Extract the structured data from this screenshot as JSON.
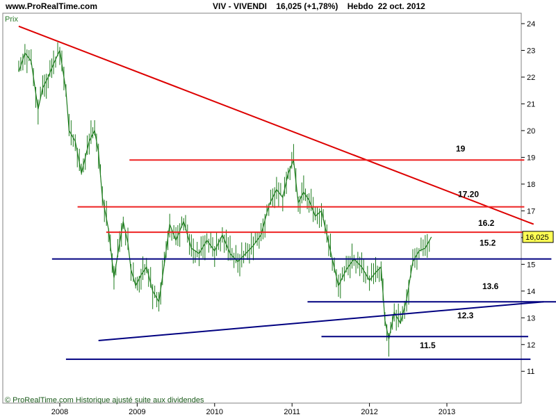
{
  "header": {
    "site": "www.ProRealTime.com",
    "quote": "VIV - VIVENDI    16,025 (+1,78%)    Hebdo  22 oct. 2012"
  },
  "chart_data": {
    "type": "line",
    "title": "VIV - VIVENDI",
    "subtitle": "16,025 (+1,78%)    Hebdo  22 oct. 2012",
    "ylabel": "Prix",
    "ylim": [
      10.6,
      24.4
    ],
    "xlim": [
      2007.45,
      2013.9
    ],
    "y_ticks": [
      11,
      12,
      13,
      14,
      15,
      16,
      17,
      18,
      19,
      20,
      21,
      22,
      23,
      24
    ],
    "x_ticks": [
      {
        "label": "2008",
        "x": 2008.0
      },
      {
        "label": "2009",
        "x": 2009.0
      },
      {
        "label": "2010",
        "x": 2010.0
      },
      {
        "label": "2011",
        "x": 2011.0
      },
      {
        "label": "2012",
        "x": 2012.0
      },
      {
        "label": "2013",
        "x": 2013.0
      }
    ],
    "last_price": "16,025",
    "footer": "© ProRealTime.com Historique ajusté suite aux dividendes",
    "grid": false,
    "price_series": {
      "name": "",
      "color": "#1a7a1a",
      "x": [
        2007.47,
        2007.55,
        2007.63,
        2007.72,
        2007.78,
        2007.85,
        2007.92,
        2008.0,
        2008.08,
        2008.12,
        2008.2,
        2008.28,
        2008.38,
        2008.45,
        2008.5,
        2008.55,
        2008.63,
        2008.7,
        2008.75,
        2008.82,
        2008.88,
        2008.92,
        2008.98,
        2009.05,
        2009.12,
        2009.2,
        2009.28,
        2009.35,
        2009.42,
        2009.5,
        2009.6,
        2009.7,
        2009.8,
        2009.9,
        2010.0,
        2010.1,
        2010.2,
        2010.3,
        2010.4,
        2010.5,
        2010.6,
        2010.7,
        2010.8,
        2010.88,
        2010.95,
        2011.02,
        2011.08,
        2011.15,
        2011.22,
        2011.3,
        2011.38,
        2011.45,
        2011.52,
        2011.6,
        2011.7,
        2011.8,
        2011.9,
        2012.0,
        2012.08,
        2012.15,
        2012.2,
        2012.25,
        2012.32,
        2012.4,
        2012.48,
        2012.56,
        2012.64,
        2012.72,
        2012.8
      ],
      "values": [
        22.2,
        22.9,
        22.6,
        20.8,
        21.6,
        22.0,
        22.5,
        23.0,
        21.5,
        20.0,
        19.6,
        18.4,
        19.6,
        20.0,
        19.2,
        17.5,
        16.3,
        14.5,
        15.4,
        16.6,
        15.8,
        14.8,
        14.2,
        14.6,
        14.9,
        14.0,
        13.6,
        15.0,
        16.5,
        15.9,
        16.6,
        15.6,
        15.4,
        15.9,
        15.5,
        16.1,
        15.4,
        15.1,
        15.4,
        15.7,
        16.1,
        17.2,
        17.8,
        17.5,
        18.4,
        18.9,
        17.3,
        17.7,
        17.4,
        16.8,
        17.0,
        16.1,
        15.2,
        14.2,
        14.8,
        15.2,
        14.9,
        14.4,
        14.7,
        14.9,
        12.9,
        12.2,
        13.2,
        12.8,
        13.7,
        15.1,
        15.5,
        15.6,
        16.025
      ]
    },
    "resistance_lines": [
      {
        "label": "19",
        "value": 18.9,
        "x": [
          2008.9,
          2014.0
        ]
      },
      {
        "label": "17.20",
        "value": 17.15,
        "x": [
          2008.23,
          2014.0
        ]
      },
      {
        "label": "16.2",
        "value": 16.2,
        "x": [
          2008.6,
          2014.35
        ]
      }
    ],
    "support_lines": [
      {
        "label": "15.2",
        "value": 15.2,
        "x": [
          2007.9,
          2014.35
        ]
      }
    ],
    "lower_lines": [
      {
        "label": "13.6",
        "value": 13.6,
        "x": [
          2011.2,
          2014.45
        ]
      },
      {
        "label": "12.3",
        "value": 12.3,
        "x": [
          2011.38,
          2014.05
        ]
      },
      {
        "label": "11.5",
        "value": 11.45,
        "x": [
          2008.08,
          2014.08
        ]
      }
    ],
    "trendlines": [
      {
        "name": "down",
        "color": "#dd0000",
        "from": [
          2007.47,
          23.9
        ],
        "to": [
          2014.12,
          16.5
        ]
      },
      {
        "name": "up",
        "color": "#000080",
        "from": [
          2008.5,
          12.15
        ],
        "to": [
          2014.25,
          13.6
        ]
      }
    ]
  }
}
